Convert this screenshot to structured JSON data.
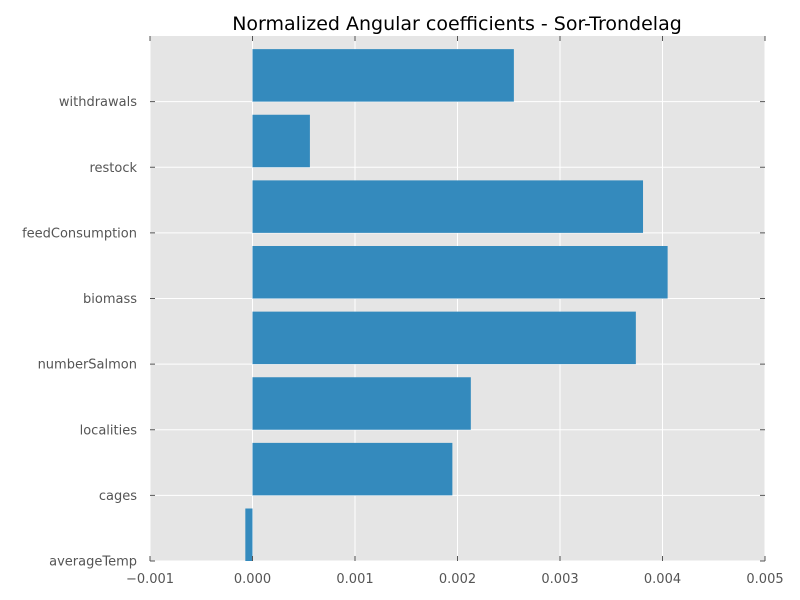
{
  "chart_data": {
    "type": "bar",
    "orientation": "horizontal",
    "title": "Normalized Angular coefficients - Sor-Trondelag",
    "xlabel": "",
    "ylabel": "",
    "categories": [
      "averageTemp",
      "cages",
      "localities",
      "numberSalmon",
      "biomass",
      "feedConsumption",
      "restock",
      "withdrawals"
    ],
    "values": [
      -7e-05,
      0.00195,
      0.00213,
      0.00374,
      0.00405,
      0.00381,
      0.00056,
      0.00255
    ],
    "xlim": [
      -0.001,
      0.005
    ],
    "xticks": [
      -0.001,
      0.0,
      0.001,
      0.002,
      0.003,
      0.004,
      0.005
    ],
    "xtick_labels": [
      "−0.001",
      "0.000",
      "0.001",
      "0.002",
      "0.003",
      "0.004",
      "0.005"
    ],
    "grid": true,
    "background_color": "#e5e5e5",
    "bar_color": "#348abd",
    "grid_color": "#ffffff"
  }
}
